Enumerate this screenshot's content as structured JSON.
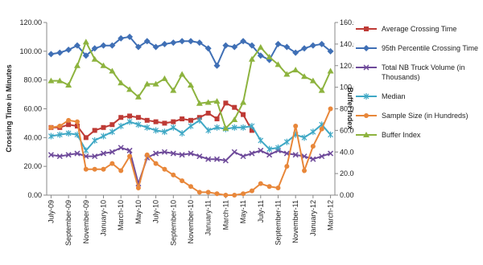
{
  "chart_data": {
    "type": "line",
    "y_label": "Crossing Time in Minutes",
    "y2_label": "Buffer Index",
    "categories": [
      "July-09",
      null,
      "September-09",
      null,
      "November-09",
      null,
      "January-10",
      null,
      "March-10",
      null,
      "May-10",
      null,
      "July-10",
      null,
      "September-10",
      null,
      "November-10",
      null,
      "January-11",
      null,
      "March-11",
      null,
      "May-11",
      null,
      "July-11",
      null,
      "September-11",
      null,
      "November-11",
      null,
      "January-12",
      null,
      "March-12"
    ],
    "ylim": [
      0,
      120
    ],
    "yticks": [
      {
        "value": 0,
        "label": "0.00"
      },
      {
        "value": 20,
        "label": "20.00"
      },
      {
        "value": 40,
        "label": "40.00"
      },
      {
        "value": 60,
        "label": "60.00"
      },
      {
        "value": 80,
        "label": "80.00"
      },
      {
        "value": 100,
        "label": "100.00"
      },
      {
        "value": 120,
        "label": "120.00"
      }
    ],
    "y2lim": [
      0,
      160
    ],
    "y2ticks": [
      {
        "value": 0,
        "label": "0.00%"
      },
      {
        "value": 20,
        "label": "20.00%"
      },
      {
        "value": 40,
        "label": "40.00%"
      },
      {
        "value": 60,
        "label": "60.00%"
      },
      {
        "value": 80,
        "label": "80.00%"
      },
      {
        "value": 100,
        "label": "100.00%"
      },
      {
        "value": 120,
        "label": "120.00%"
      },
      {
        "value": 140,
        "label": "140.00%"
      },
      {
        "value": 160,
        "label": "160.00%"
      }
    ],
    "series": [
      {
        "name": "Average Crossing Time",
        "color": "#be3a35",
        "marker": "square",
        "values": [
          47,
          47,
          49,
          48,
          40,
          45,
          47,
          49,
          54,
          55,
          54,
          52,
          51,
          50,
          51,
          53,
          52,
          54,
          57,
          53,
          64,
          61,
          56,
          45,
          null,
          null,
          null,
          null,
          null,
          null,
          null,
          null,
          null
        ]
      },
      {
        "name": "95th Percentile Crossing Time",
        "color": "#3f6fb5",
        "marker": "diamond",
        "values": [
          98,
          99,
          101,
          104,
          97,
          102,
          104,
          104,
          109,
          110,
          103,
          107,
          103,
          105,
          106,
          107,
          107,
          106,
          102,
          90,
          104,
          103,
          107,
          104,
          97,
          94,
          105,
          103,
          99,
          102,
          104,
          105,
          100
        ]
      },
      {
        "name": "Total NB Truck Volume (in Thousands)",
        "color": "#6e4a9a",
        "marker": "x",
        "values": [
          28,
          27,
          28,
          29,
          27,
          27,
          29,
          30,
          33,
          31,
          8,
          26,
          29,
          30,
          29,
          28,
          29,
          27,
          25,
          25,
          24,
          30,
          27,
          29,
          31,
          28,
          31,
          29,
          28,
          27,
          25,
          27,
          29
        ]
      },
      {
        "name": "Median",
        "color": "#3fa8c5",
        "marker": "star",
        "values": [
          41,
          42,
          43,
          42,
          31,
          38,
          41,
          44,
          48,
          51,
          49,
          47,
          45,
          44,
          47,
          43,
          48,
          52,
          45,
          47,
          46,
          47,
          47,
          48,
          38,
          32,
          33,
          37,
          42,
          40,
          44,
          49,
          42
        ]
      },
      {
        "name": "Sample Size (in Hundreds)",
        "color": "#e8873a",
        "marker": "circle",
        "values": [
          47,
          48,
          52,
          51,
          18,
          18,
          18,
          22,
          17,
          27,
          5,
          28,
          22,
          18,
          14,
          10,
          6,
          2,
          2,
          1,
          0,
          0,
          1,
          3,
          8,
          6,
          5,
          20,
          48,
          17,
          34,
          46,
          60
        ]
      },
      {
        "name": "Buffer Index",
        "color": "#8db33e",
        "marker": "triangle",
        "axis": "y2",
        "values": [
          106,
          106,
          102,
          120,
          142,
          126,
          120,
          115,
          104,
          98,
          91,
          103,
          103,
          108,
          97,
          112,
          102,
          85,
          86,
          87,
          62,
          70,
          86,
          126,
          137,
          128,
          121,
          112,
          116,
          110,
          106,
          97,
          115
        ]
      }
    ]
  }
}
